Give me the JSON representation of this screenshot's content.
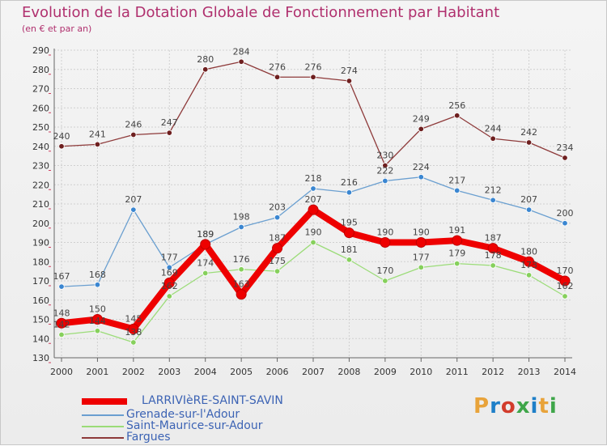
{
  "header": {
    "title": "Evolution de la Dotation Globale de Fonctionnement par Habitant",
    "subtitle": "(en € et par an)"
  },
  "logo": {
    "text": "Proxiti",
    "colors": [
      "#e8a33a",
      "#1e7fc8",
      "#d23c2c",
      "#3fa64a"
    ]
  },
  "chart_data": {
    "type": "line",
    "title": "Evolution de la Dotation Globale de Fonctionnement par Habitant",
    "subtitle": "(en € et par an)",
    "xlabel": "",
    "ylabel": "",
    "x": [
      "2000",
      "2001",
      "2002",
      "2003",
      "2004",
      "2005",
      "2006",
      "2007",
      "2008",
      "2009",
      "2010",
      "2011",
      "2012",
      "2013",
      "2014"
    ],
    "ylim": [
      130,
      290
    ],
    "yticks": [
      "130",
      "140",
      "150",
      "160",
      "170",
      "180",
      "190",
      "200",
      "210",
      "220",
      "230",
      "240",
      "250",
      "260",
      "270",
      "280",
      "290"
    ],
    "grid": true,
    "legend_position": "bottom-left",
    "series": [
      {
        "name": "LARRIVIèRE-SAINT-SAVIN",
        "color": "#ee0000",
        "marker": "#ee0000",
        "values": [
          148,
          150,
          145,
          169,
          189,
          163,
          187,
          207,
          195,
          190,
          190,
          191,
          187,
          180,
          170
        ],
        "labels": [
          "148",
          "150",
          "145",
          "169",
          "189",
          "163",
          "187",
          "207",
          "195",
          "190",
          "190",
          "191",
          "187",
          "180",
          "170"
        ]
      },
      {
        "name": "Grenade-sur-l'Adour",
        "color": "#6a9fd0",
        "marker": "#3a86d1",
        "values": [
          167,
          168,
          207,
          177,
          189,
          198,
          203,
          218,
          216,
          222,
          224,
          217,
          212,
          207,
          200
        ],
        "labels": [
          "167",
          "168",
          "207",
          "177",
          "189",
          "198",
          "203",
          "218",
          "216",
          "222",
          "224",
          "217",
          "212",
          "207",
          "200"
        ]
      },
      {
        "name": "Saint-Maurice-sur-Adour",
        "color": "#9bdc78",
        "marker": "#86d05c",
        "values": [
          142,
          144,
          138,
          162,
          174,
          176,
          175,
          190,
          181,
          170,
          177,
          179,
          178,
          173,
          162
        ],
        "labels": [
          "142",
          "144",
          "138",
          "162",
          "174",
          "176",
          "175",
          "190",
          "181",
          "170",
          "177",
          "179",
          "178",
          "173",
          "162"
        ]
      },
      {
        "name": "Fargues",
        "color": "#8e3a3a",
        "marker": "#6e1f1f",
        "values": [
          240,
          241,
          246,
          247,
          280,
          284,
          276,
          276,
          274,
          230,
          249,
          256,
          244,
          242,
          234
        ],
        "labels": [
          "240",
          "241",
          "246",
          "247",
          "280",
          "284",
          "276",
          "276",
          "274",
          "230",
          "249",
          "256",
          "244",
          "242",
          "234"
        ]
      }
    ]
  }
}
